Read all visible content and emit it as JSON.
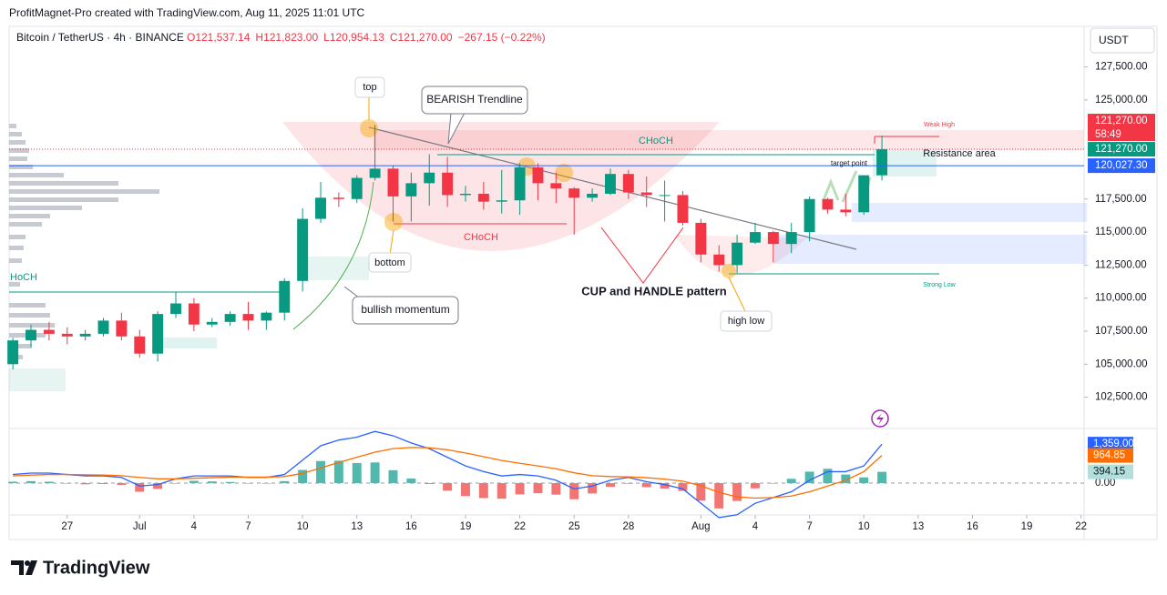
{
  "header": {
    "credit": "ProfitMagnet-Pro created with TradingView.com, Aug 11, 2025 11:01 UTC"
  },
  "chart_data": {
    "type": "candlestick",
    "symbol": "Bitcoin / TetherUS · 4h · BINANCE",
    "ohlc_labels": [
      "O121,537.14",
      "H121,823.00",
      "L120,954.13",
      "C121,270.00",
      "−267.15 (−0.22%)"
    ],
    "currency": "USDT",
    "x": [
      "2025-06-24",
      "2025-06-25",
      "2025-06-26",
      "2025-06-27",
      "2025-06-28",
      "2025-06-29",
      "2025-06-30",
      "2025-07-01",
      "2025-07-02",
      "2025-07-03",
      "2025-07-04",
      "2025-07-05",
      "2025-07-06",
      "2025-07-07",
      "2025-07-08",
      "2025-07-09",
      "2025-07-10",
      "2025-07-11",
      "2025-07-12",
      "2025-07-13",
      "2025-07-14",
      "2025-07-15",
      "2025-07-16",
      "2025-07-17",
      "2025-07-18",
      "2025-07-19",
      "2025-07-20",
      "2025-07-21",
      "2025-07-22",
      "2025-07-23",
      "2025-07-24",
      "2025-07-25",
      "2025-07-26",
      "2025-07-27",
      "2025-07-28",
      "2025-07-29",
      "2025-07-30",
      "2025-07-31",
      "2025-08-01",
      "2025-08-02",
      "2025-08-03",
      "2025-08-04",
      "2025-08-05",
      "2025-08-06",
      "2025-08-07",
      "2025-08-08",
      "2025-08-09",
      "2025-08-10",
      "2025-08-11"
    ],
    "open": [
      105000,
      106800,
      107600,
      107300,
      107100,
      107300,
      108300,
      107100,
      105800,
      108800,
      109600,
      108000,
      108200,
      108800,
      108300,
      108900,
      111300,
      116000,
      117600,
      117500,
      119100,
      119800,
      117700,
      118700,
      119500,
      117800,
      117900,
      117300,
      117400,
      119900,
      118700,
      118300,
      117600,
      117900,
      119400,
      118000,
      117800,
      117800,
      115700,
      113300,
      112500,
      114200,
      115000,
      114100,
      115000,
      117500,
      116700,
      116500,
      119300
    ],
    "high": [
      107000,
      108000,
      108200,
      107800,
      107600,
      108500,
      108900,
      107600,
      109000,
      110500,
      110000,
      108500,
      109000,
      109700,
      109000,
      111500,
      116800,
      118800,
      118000,
      119300,
      123100,
      120000,
      119500,
      120900,
      120700,
      118500,
      118800,
      119700,
      120200,
      120200,
      119500,
      118400,
      118300,
      119800,
      119700,
      119200,
      118900,
      118100,
      116000,
      114000,
      114800,
      115700,
      115100,
      115700,
      117700,
      117600,
      117900,
      119300,
      122300
    ],
    "low": [
      104600,
      106300,
      106800,
      106500,
      106800,
      107100,
      106800,
      105500,
      105200,
      108500,
      107500,
      107800,
      107900,
      107600,
      107600,
      108300,
      110500,
      115700,
      116900,
      117200,
      118900,
      115800,
      115800,
      117000,
      116900,
      117300,
      116700,
      116400,
      116300,
      117400,
      117200,
      114800,
      117300,
      117800,
      117500,
      116900,
      115800,
      115500,
      112700,
      112000,
      111900,
      114100,
      112700,
      113400,
      114300,
      116400,
      116200,
      116300,
      118900
    ],
    "close": [
      106800,
      107600,
      107300,
      107100,
      107300,
      108300,
      107100,
      105800,
      108800,
      109600,
      108000,
      108200,
      108800,
      108300,
      108900,
      111300,
      116000,
      117600,
      117500,
      119100,
      119800,
      117700,
      118700,
      119500,
      117800,
      117900,
      117300,
      117400,
      119900,
      118700,
      118300,
      117600,
      117900,
      119400,
      118000,
      117800,
      117800,
      115700,
      113300,
      112500,
      114200,
      115000,
      114100,
      115000,
      117500,
      116700,
      116500,
      119300,
      121270
    ],
    "up_color": "#089981",
    "down_color": "#f23645",
    "xlim": [
      "2025-06-24T07:00Z",
      "2025-08-22T16:00Z"
    ],
    "xticks": [
      {
        "value": "2025-06-27",
        "label": "27"
      },
      {
        "value": "2025-07-01",
        "label": "Jul"
      },
      {
        "value": "2025-07-04",
        "label": "4"
      },
      {
        "value": "2025-07-07",
        "label": "7"
      },
      {
        "value": "2025-07-10",
        "label": "10"
      },
      {
        "value": "2025-07-13",
        "label": "13"
      },
      {
        "value": "2025-07-16",
        "label": "16"
      },
      {
        "value": "2025-07-19",
        "label": "19"
      },
      {
        "value": "2025-07-22",
        "label": "22"
      },
      {
        "value": "2025-07-25",
        "label": "25"
      },
      {
        "value": "2025-07-28",
        "label": "28"
      },
      {
        "value": "2025-08-01",
        "label": "Aug"
      },
      {
        "value": "2025-08-04",
        "label": "4"
      },
      {
        "value": "2025-08-07",
        "label": "7"
      },
      {
        "value": "2025-08-10",
        "label": "10"
      },
      {
        "value": "2025-08-13",
        "label": "13"
      },
      {
        "value": "2025-08-16",
        "label": "16"
      },
      {
        "value": "2025-08-19",
        "label": "19"
      },
      {
        "value": "2025-08-22",
        "label": "22"
      }
    ],
    "ylim": [
      100200,
      130500
    ],
    "yticks": [
      {
        "value": 102500,
        "label": "102,500.00"
      },
      {
        "value": 105000,
        "label": "105,000.00"
      },
      {
        "value": 107500,
        "label": "107,500.00"
      },
      {
        "value": 110000,
        "label": "110,000.00"
      },
      {
        "value": 112500,
        "label": "112,500.00"
      },
      {
        "value": 115000,
        "label": "115,000.00"
      },
      {
        "value": 117500,
        "label": "117,500.00"
      },
      {
        "value": 125000,
        "label": "125,000.00"
      },
      {
        "value": 127500,
        "label": "127,500.00"
      }
    ],
    "price_labels": [
      {
        "value": 121270,
        "label": "121,270.00",
        "color": "#f23645"
      },
      {
        "value": 121270,
        "label": "121,270.00",
        "color": "#089981"
      },
      {
        "value": 120027.3,
        "label": "120,027.30",
        "color": "#2962ff"
      }
    ],
    "countdown": "58:49",
    "annotations": [
      "top",
      "BEARISH Trendline",
      "CHoCH",
      "CHoCH",
      "HoCH",
      "bottom",
      "bullish momentum",
      "CUP and HANDLE pattern",
      "high low",
      "target point",
      "Resistance area",
      "Weak High",
      "Strong Low"
    ],
    "indicator": {
      "type": "macd",
      "ylim": [
        -1930,
        1870
      ],
      "yticks": [
        {
          "value": 0,
          "label": "0.00"
        }
      ],
      "series": [
        {
          "color": "#2962ff",
          "values": [
            300,
            350,
            350,
            300,
            250,
            250,
            200,
            -100,
            -50,
            150,
            250,
            250,
            250,
            200,
            200,
            300,
            800,
            1300,
            1500,
            1600,
            1800,
            1650,
            1400,
            1200,
            900,
            600,
            400,
            250,
            300,
            250,
            100,
            -200,
            -100,
            100,
            200,
            50,
            -50,
            -200,
            -700,
            -1200,
            -1100,
            -700,
            -500,
            -300,
            100,
            400,
            400,
            600,
            1359
          ],
          "last_label": "1,359.00"
        },
        {
          "color": "#ff6d00",
          "values": [
            250,
            280,
            300,
            300,
            290,
            280,
            260,
            200,
            150,
            150,
            170,
            190,
            210,
            210,
            210,
            230,
            340,
            530,
            720,
            900,
            1080,
            1200,
            1240,
            1230,
            1160,
            1050,
            920,
            790,
            690,
            600,
            500,
            360,
            260,
            230,
            220,
            190,
            140,
            70,
            -90,
            -320,
            -480,
            -520,
            -500,
            -450,
            -300,
            -100,
            100,
            400,
            964.85
          ],
          "last_label": "964.85"
        }
      ],
      "histogram": {
        "values": [
          50,
          70,
          50,
          0,
          -40,
          -30,
          -60,
          -300,
          -200,
          0,
          80,
          60,
          40,
          -10,
          -10,
          70,
          460,
          770,
          780,
          700,
          720,
          450,
          160,
          -30,
          -260,
          -450,
          -520,
          -540,
          -390,
          -350,
          -400,
          -560,
          -360,
          -130,
          -20,
          -140,
          -190,
          -270,
          -610,
          -880,
          -620,
          -180,
          0,
          150,
          400,
          500,
          300,
          200,
          394.15
        ],
        "up_color": "#26a69a",
        "down_color": "#ef5350",
        "last_label": "394.15"
      }
    }
  },
  "footer": {
    "brand": "TradingView"
  }
}
